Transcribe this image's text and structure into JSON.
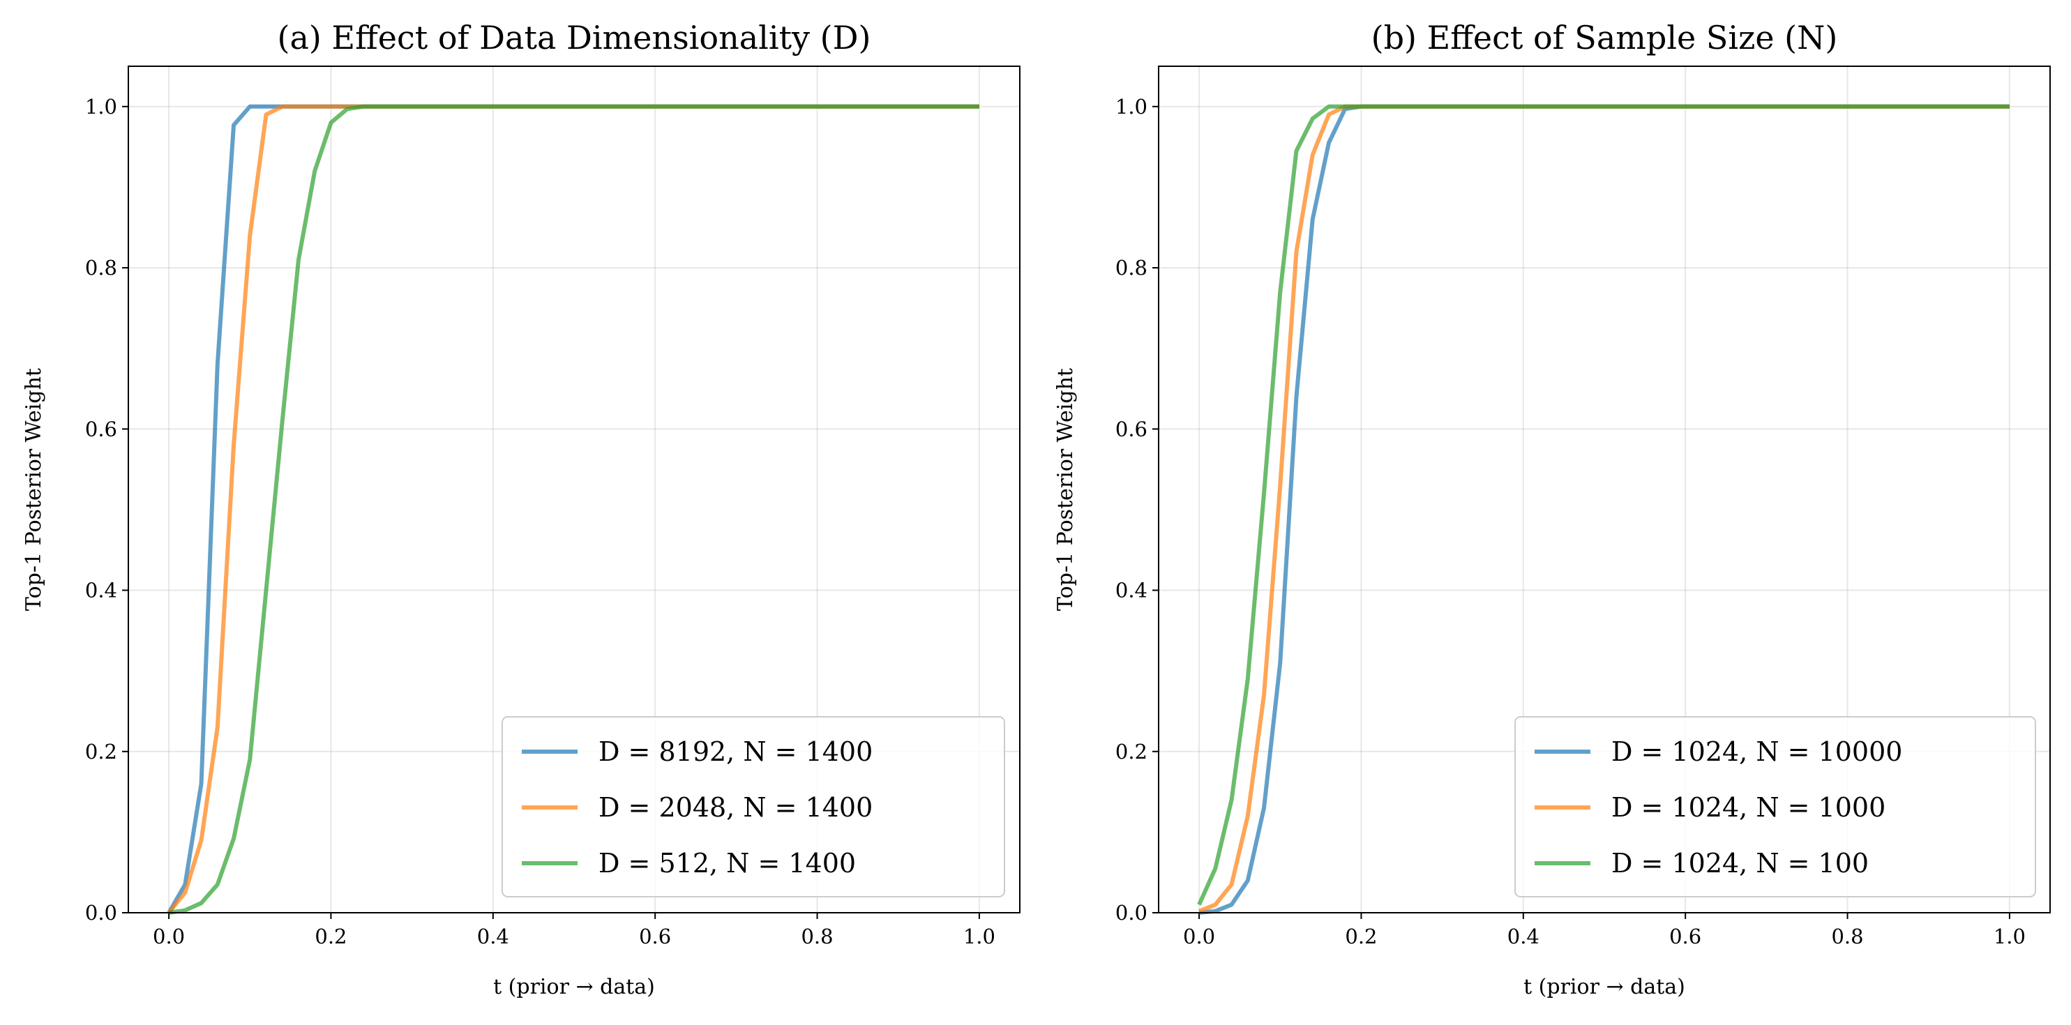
{
  "chart_data": [
    {
      "type": "line",
      "title": "(a) Effect of Data Dimensionality (D)",
      "xlabel": "t (prior → data)",
      "ylabel": "Top-1 Posterior Weight",
      "xlim": [
        -0.05,
        1.05
      ],
      "ylim": [
        0,
        1.05
      ],
      "xticks": [
        "0.0",
        "0.2",
        "0.4",
        "0.6",
        "0.8",
        "1.0"
      ],
      "yticks": [
        "0.0",
        "0.2",
        "0.4",
        "0.6",
        "0.8",
        "1.0"
      ],
      "grid": true,
      "legend_position": "lower-right",
      "series": [
        {
          "name": "D = 8192, N = 1400",
          "color": "#1f77b4",
          "x": [
            0,
            0.02,
            0.04,
            0.06,
            0.08,
            0.1,
            1.0
          ],
          "y": [
            0,
            0.035,
            0.16,
            0.68,
            0.977,
            1.0,
            1.0
          ]
        },
        {
          "name": "D = 2048, N = 1400",
          "color": "#ff7f0e",
          "x": [
            0,
            0.02,
            0.04,
            0.06,
            0.08,
            0.1,
            0.12,
            0.14,
            1.0
          ],
          "y": [
            0,
            0.025,
            0.09,
            0.23,
            0.58,
            0.84,
            0.99,
            1.0,
            1.0
          ]
        },
        {
          "name": "D = 512, N = 1400",
          "color": "#2ca02c",
          "x": [
            0,
            0.02,
            0.04,
            0.06,
            0.08,
            0.1,
            0.12,
            0.14,
            0.16,
            0.18,
            0.2,
            0.22,
            0.24,
            1.0
          ],
          "y": [
            0,
            0.003,
            0.012,
            0.035,
            0.092,
            0.19,
            0.4,
            0.61,
            0.81,
            0.92,
            0.98,
            0.997,
            1.0,
            1.0
          ]
        }
      ]
    },
    {
      "type": "line",
      "title": "(b) Effect of Sample Size (N)",
      "xlabel": "t (prior → data)",
      "ylabel": "Top-1 Posterior Weight",
      "xlim": [
        -0.05,
        1.05
      ],
      "ylim": [
        0,
        1.05
      ],
      "xticks": [
        "0.0",
        "0.2",
        "0.4",
        "0.6",
        "0.8",
        "1.0"
      ],
      "yticks": [
        "0.0",
        "0.2",
        "0.4",
        "0.6",
        "0.8",
        "1.0"
      ],
      "grid": true,
      "legend_position": "lower-right",
      "series": [
        {
          "name": "D = 1024, N = 10000",
          "color": "#1f77b4",
          "x": [
            0,
            0.02,
            0.04,
            0.06,
            0.08,
            0.1,
            0.12,
            0.14,
            0.16,
            0.18,
            0.2,
            1.0
          ],
          "y": [
            0,
            0.002,
            0.01,
            0.04,
            0.13,
            0.31,
            0.64,
            0.86,
            0.955,
            0.997,
            1.0,
            1.0
          ]
        },
        {
          "name": "D = 1024, N = 1000",
          "color": "#ff7f0e",
          "x": [
            0,
            0.02,
            0.04,
            0.06,
            0.08,
            0.1,
            0.12,
            0.14,
            0.16,
            0.18,
            1.0
          ],
          "y": [
            0.002,
            0.01,
            0.035,
            0.12,
            0.27,
            0.53,
            0.82,
            0.94,
            0.99,
            1.0,
            1.0
          ]
        },
        {
          "name": "D = 1024, N = 100",
          "color": "#2ca02c",
          "x": [
            0,
            0.02,
            0.04,
            0.06,
            0.08,
            0.1,
            0.12,
            0.14,
            0.16,
            1.0
          ],
          "y": [
            0.01,
            0.055,
            0.14,
            0.29,
            0.52,
            0.77,
            0.945,
            0.985,
            1.0,
            1.0
          ]
        }
      ]
    }
  ]
}
